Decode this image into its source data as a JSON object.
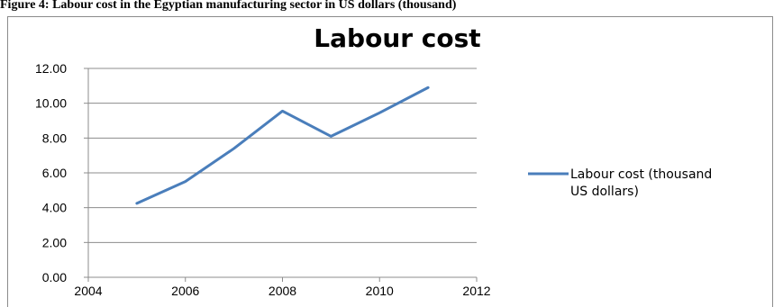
{
  "caption": "Figure 4: Labour cost in the Egyptian manufacturing sector in US dollars (thousand)",
  "chart_data": {
    "type": "line",
    "title": "Labour cost",
    "xlabel": "",
    "ylabel": "",
    "xlim": [
      2004,
      2012
    ],
    "ylim": [
      0,
      12
    ],
    "x_ticks": [
      "2004",
      "2006",
      "2008",
      "2010",
      "2012"
    ],
    "y_ticks": [
      "0.00",
      "2.00",
      "4.00",
      "6.00",
      "8.00",
      "10.00",
      "12.00"
    ],
    "grid": true,
    "legend_position": "right",
    "series": [
      {
        "name": "Labour cost (thousand US dollars)",
        "color": "#4a7ebb",
        "x": [
          2005,
          2006,
          2007,
          2008,
          2009,
          2010,
          2011
        ],
        "values": [
          4.25,
          5.5,
          7.4,
          9.55,
          8.1,
          9.45,
          10.9
        ]
      }
    ],
    "legend_lines": [
      "Labour cost (thousand",
      "US dollars)"
    ]
  }
}
